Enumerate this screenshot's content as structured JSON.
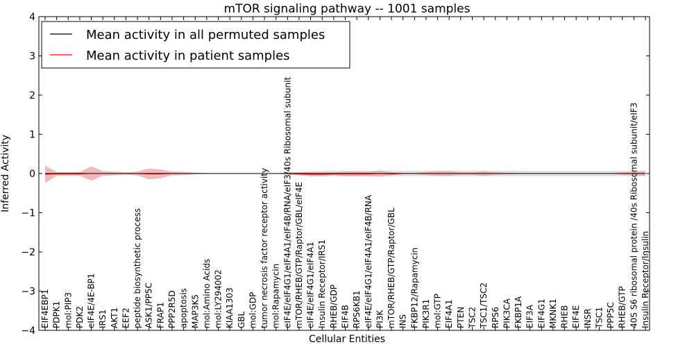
{
  "chart_data": {
    "type": "line",
    "title": "mTOR signaling pathway -- 1001 samples",
    "xlabel": "Cellular Entities",
    "ylabel": "Inferred Activity",
    "ylim": [
      -4,
      4
    ],
    "yticks": [
      -4,
      -3,
      -2,
      -1,
      0,
      1,
      2,
      3,
      4
    ],
    "grid": false,
    "legend_position": "top-left",
    "categories": [
      "EIF4EBP1",
      "PDPK1",
      "mol:PIP3",
      "PDK2",
      "eIF4E/4E-BP1",
      "IRS1",
      "AKT1",
      "EEF2",
      "peptide biosynthetic process",
      "ASK1/PP5C",
      "FRAP1",
      "PPP2R5D",
      "apoptosis",
      "MAP3K5",
      "mol:Amino Acids",
      "mol:LY294002",
      "KIAA1303",
      "GBL",
      "mol:GDP",
      "tumor necrosis factor receptor activity",
      "mol:Rapamycin",
      "eIF4E/eIF4G1/eIF4A1/eIF4B/RNA/eIF3/40s Ribosomal subunit",
      "mTOR/RHEB/GTP/Raptor/GBL/eIF4E",
      "eIF4E/eIF4G1/eIF4A1",
      "Insulin Receptor/IRS1",
      "RHEB/GDP",
      "EIF4B",
      "RPS6KB1",
      "eIF4E/eIF4G1/eIF4A1/eIF4B/RNA",
      "PI3K",
      "mTOR/RHEB/GTP/Raptor/GBL",
      "INS",
      "FKBP12/Rapamycin",
      "PIK3R1",
      "mol:GTP",
      "EIF4A1",
      "PTEN",
      "TSC2",
      "TSC1/TSC2",
      "RPS6",
      "PIK3CA",
      "FKBP1A",
      "EIF3A",
      "EIF4G1",
      "MKNK1",
      "RHEB",
      "EIF4E",
      "INSR",
      "TSC1",
      "PPP5C",
      "RHEB/GTP",
      "40S S6 ribosomal protein /40s Ribosomal subunit/eIF3",
      "Insulin Receptor/Insulin"
    ],
    "series": [
      {
        "name": "Mean activity in all permuted samples",
        "color": "#000000",
        "values": [
          0,
          0,
          0,
          0,
          0,
          0,
          0,
          0,
          0,
          0,
          0,
          0,
          0,
          0,
          0,
          0,
          0,
          0,
          0,
          0,
          0,
          0,
          0,
          0,
          0,
          0,
          0,
          0,
          0,
          0,
          0,
          0,
          0,
          0,
          0,
          0,
          0,
          0,
          0,
          0,
          0,
          0,
          0,
          0,
          0,
          0,
          0,
          0,
          0,
          0,
          0,
          0,
          0
        ],
        "band_half_width": [
          0.01,
          0.01,
          0.01,
          0.01,
          0.01,
          0.01,
          0.01,
          0.01,
          0.01,
          0.01,
          0.01,
          0.01,
          0.01,
          0.01,
          0.005,
          0.005,
          0.005,
          0.005,
          0.005,
          0.005,
          0.005,
          0.02,
          0.04,
          0.06,
          0.07,
          0.07,
          0.07,
          0.07,
          0.07,
          0.07,
          0.07,
          0.07,
          0.07,
          0.07,
          0.07,
          0.07,
          0.07,
          0.07,
          0.07,
          0.07,
          0.07,
          0.07,
          0.07,
          0.07,
          0.07,
          0.07,
          0.07,
          0.07,
          0.07,
          0.07,
          0.07,
          0.07,
          0.07
        ],
        "band_color": "#cccccc"
      },
      {
        "name": "Mean activity in patient samples",
        "color": "#ff0000",
        "values": [
          -0.02,
          -0.01,
          -0.01,
          -0.01,
          0,
          0,
          0,
          0,
          0,
          -0.01,
          -0.01,
          0,
          0,
          0,
          0,
          0,
          0,
          0,
          0,
          0,
          0,
          0,
          -0.01,
          -0.02,
          -0.02,
          -0.01,
          -0.01,
          -0.01,
          -0.01,
          0,
          -0.01,
          0,
          0,
          0,
          0,
          0,
          0,
          0,
          0,
          0,
          0,
          0,
          0,
          0,
          0,
          0,
          0,
          0,
          0,
          0,
          0,
          0,
          0
        ],
        "band_half_width": [
          0.22,
          0.05,
          0.05,
          0.05,
          0.18,
          0.06,
          0.05,
          0.03,
          0.05,
          0.14,
          0.11,
          0.05,
          0.04,
          0.02,
          0.01,
          0.005,
          0.005,
          0.005,
          0.005,
          0.005,
          0.005,
          0.03,
          0.04,
          0.05,
          0.05,
          0.04,
          0.06,
          0.06,
          0.06,
          0.08,
          0.04,
          0.02,
          0.01,
          0.04,
          0.06,
          0.06,
          0.03,
          0.03,
          0.06,
          0.03,
          0.02,
          0.01,
          0.01,
          0.01,
          0.01,
          0.01,
          0.01,
          0.01,
          0.01,
          0.01,
          0.03,
          0.05,
          0.06
        ],
        "band_color": "#f2a0a0"
      }
    ]
  }
}
